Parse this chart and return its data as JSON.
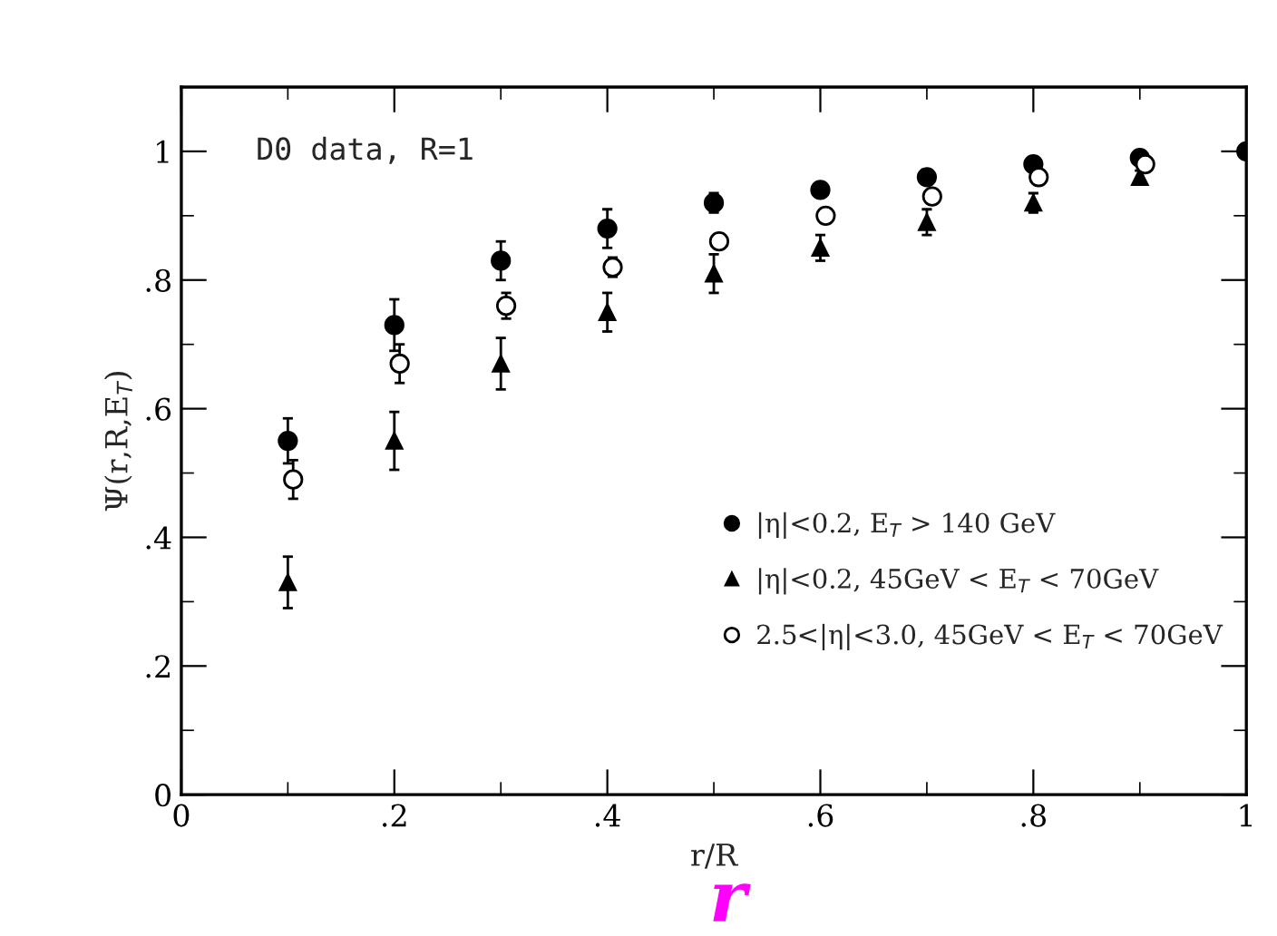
{
  "chart_data": {
    "type": "scatter",
    "xlabel": "r/R",
    "ylabel": "Ψ(r,R,E$_{T}$)",
    "xlim": [
      0,
      1
    ],
    "ylim": [
      0,
      1.1
    ],
    "xticks": [
      {
        "value": 0,
        "label": "0"
      },
      {
        "value": 0.2,
        "label": ".2"
      },
      {
        "value": 0.4,
        "label": ".4"
      },
      {
        "value": 0.6,
        "label": ".6"
      },
      {
        "value": 0.8,
        "label": ".8"
      },
      {
        "value": 1,
        "label": "1"
      }
    ],
    "yticks": [
      {
        "value": 0,
        "label": "0"
      },
      {
        "value": 0.2,
        "label": ".2"
      },
      {
        "value": 0.4,
        "label": ".4"
      },
      {
        "value": 0.6,
        "label": ".6"
      },
      {
        "value": 0.8,
        "label": ".8"
      },
      {
        "value": 1,
        "label": "1"
      }
    ],
    "grid": false,
    "legend": "bottom right",
    "annotations": [
      "D0 data, R=1",
      "r"
    ],
    "series": [
      {
        "name": "|η|<0.2, E$_{T}$ > 140 GeV",
        "color": "#000000",
        "marker": "circle",
        "x": [
          0.1,
          0.2,
          0.3,
          0.4,
          0.5,
          0.6,
          0.7,
          0.8,
          0.9,
          1.0
        ],
        "values": [
          0.55,
          0.73,
          0.83,
          0.88,
          0.92,
          0.94,
          0.96,
          0.98,
          0.99,
          1.0
        ],
        "errors": [
          0.035,
          0.04,
          0.03,
          0.03,
          0.015,
          0.01,
          0.01,
          0.01,
          0.01,
          null
        ]
      },
      {
        "name": "|η|<0.2, 45GeV < E$_{T}$ < 70GeV",
        "color": "#000000",
        "marker": "triangle",
        "x": [
          0.1,
          0.2,
          0.3,
          0.4,
          0.5,
          0.6,
          0.7,
          0.8,
          0.9
        ],
        "values": [
          0.33,
          0.55,
          0.67,
          0.75,
          0.81,
          0.85,
          0.89,
          0.92,
          0.96
        ],
        "errors": [
          0.04,
          0.045,
          0.04,
          0.03,
          0.03,
          0.02,
          0.02,
          0.015,
          0.01
        ]
      },
      {
        "name": "2.5<|η|<3.0, 45GeV < E$_{T}$ < 70GeV",
        "color": "#000000",
        "marker": "circle",
        "x": [
          0.105,
          0.205,
          0.305,
          0.405,
          0.505,
          0.605,
          0.705,
          0.805,
          0.905
        ],
        "values": [
          0.49,
          0.67,
          0.76,
          0.82,
          0.86,
          0.9,
          0.93,
          0.96,
          0.98
        ],
        "errors": [
          0.03,
          0.03,
          0.02,
          0.015,
          0.01,
          0.01,
          0.01,
          0.005,
          0.005
        ]
      }
    ]
  }
}
